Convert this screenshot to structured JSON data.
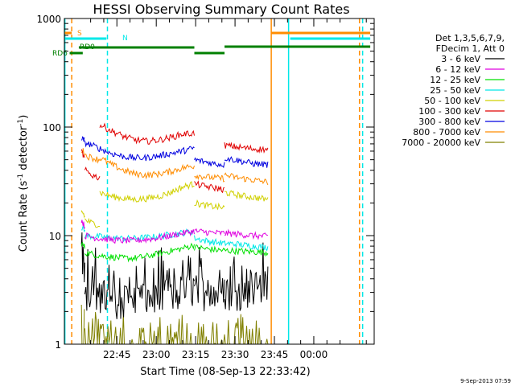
{
  "chart_data": {
    "type": "line",
    "title": "HESSI Observing Summary Count Rates",
    "xlabel": "Start Time (08-Sep-13 22:33:42)",
    "ylabel_main": "Count Rate (s",
    "ylabel_sup1": "-1",
    "ylabel_mid": " detector",
    "ylabel_sup2": "-1",
    "ylabel_end": ")",
    "y_scale": "log",
    "ylim": [
      1,
      1000
    ],
    "y_ticks": [
      {
        "value": 1,
        "label": "1"
      },
      {
        "value": 10,
        "label": "10"
      },
      {
        "value": 100,
        "label": "100"
      },
      {
        "value": 1000,
        "label": "1000"
      }
    ],
    "xlim_minutes": [
      -20,
      98
    ],
    "x_ticks": [
      {
        "t": 0,
        "label": "22:45"
      },
      {
        "t": 15,
        "label": "23:00"
      },
      {
        "t": 30,
        "label": "23:15"
      },
      {
        "t": 45,
        "label": "23:30"
      },
      {
        "t": 60,
        "label": "23:45"
      },
      {
        "t": 75,
        "label": "00:00"
      }
    ],
    "legend": {
      "position": "right",
      "header_line1": "Det 1,3,5,6,7,9,",
      "header_line2": "FDecim 1, Att 0"
    },
    "series": [
      {
        "name": "3 - 6 keV",
        "color": "#000000",
        "segments": [
          {
            "start": -13.5,
            "end": -12.2,
            "values": [
              6,
              5
            ]
          },
          {
            "start": -12.2,
            "end": 29.5,
            "values": [
              3,
              2.8,
              2.6,
              2.5,
              2.5,
              2.6,
              2.7,
              2.8,
              3.0,
              3.2
            ]
          },
          {
            "start": 29.5,
            "end": 41,
            "values": [
              3,
              3,
              2.9,
              2.9
            ]
          },
          {
            "start": 41,
            "end": 57.5,
            "values": [
              3,
              3,
              3.1,
              3.2
            ]
          }
        ]
      },
      {
        "name": "6 - 12 keV",
        "color": "#e000e0",
        "segments": [
          {
            "start": -13.5,
            "end": -12.2,
            "values": [
              14,
              12
            ]
          },
          {
            "start": -12.2,
            "end": 29.5,
            "values": [
              10,
              9.5,
              9.2,
              9.0,
              9.0,
              9.2,
              9.5,
              10,
              10.5,
              11
            ]
          },
          {
            "start": 29.5,
            "end": 41,
            "values": [
              11,
              10.8,
              10.6,
              10.5
            ]
          },
          {
            "start": 41,
            "end": 57.5,
            "values": [
              10.5,
              10.3,
              10,
              9.8
            ]
          }
        ]
      },
      {
        "name": "12 - 25 keV",
        "color": "#00e000",
        "segments": [
          {
            "start": -13.5,
            "end": -12.2,
            "values": [
              8.5,
              7.8
            ]
          },
          {
            "start": -12.2,
            "end": 29.5,
            "values": [
              7,
              6.6,
              6.4,
              6.2,
              6.2,
              6.4,
              6.8,
              7.2,
              7.6,
              8.2
            ]
          },
          {
            "start": 29.5,
            "end": 41,
            "values": [
              7.8,
              7.6,
              7.4,
              7.3
            ]
          },
          {
            "start": 41,
            "end": 57.5,
            "values": [
              7.3,
              7.2,
              7.1,
              7.0
            ]
          }
        ]
      },
      {
        "name": "25 - 50 keV",
        "color": "#00e8e8",
        "segments": [
          {
            "start": -13.5,
            "end": -12.2,
            "values": [
              12,
              11
            ]
          },
          {
            "start": -12.2,
            "end": 29.5,
            "values": [
              10,
              9.8,
              9.6,
              9.4,
              9.4,
              9.6,
              9.8,
              10.2,
              10.6,
              11
            ]
          },
          {
            "start": 29.5,
            "end": 41,
            "values": [
              9.5,
              9,
              8.7,
              8.5
            ]
          },
          {
            "start": 41,
            "end": 57.5,
            "values": [
              8.5,
              8.3,
              8.0,
              7.8
            ]
          }
        ]
      },
      {
        "name": "50 - 100 keV",
        "color": "#d0d000",
        "segments": [
          {
            "start": -13.5,
            "end": -12.2,
            "values": [
              17,
              15
            ]
          },
          {
            "start": -12.2,
            "end": -6.5,
            "values": [
              14,
              13,
              12.5
            ]
          },
          {
            "start": -6.5,
            "end": 29.5,
            "values": [
              25,
              23,
              22,
              21.5,
              22,
              23,
              25,
              28,
              30
            ]
          },
          {
            "start": 29.5,
            "end": 41,
            "values": [
              20,
              19,
              18.5,
              18
            ]
          },
          {
            "start": 41,
            "end": 57.5,
            "values": [
              25,
              23.5,
              22.5,
              21.5
            ]
          }
        ]
      },
      {
        "name": "100 - 300 keV",
        "color": "#e00000",
        "segments": [
          {
            "start": -13.5,
            "end": -12.2,
            "values": [
              60,
              50
            ]
          },
          {
            "start": -12.2,
            "end": -6.5,
            "values": [
              40,
              36,
              34
            ]
          },
          {
            "start": -6.5,
            "end": 29.5,
            "values": [
              105,
              92,
              82,
              76,
              74,
              76,
              80,
              86,
              88
            ]
          },
          {
            "start": 29.5,
            "end": 41,
            "values": [
              30,
              28.5,
              27.5,
              26.5
            ]
          },
          {
            "start": 41,
            "end": 57.5,
            "values": [
              68,
              65,
              63,
              62
            ]
          }
        ]
      },
      {
        "name": "300 - 800 keV",
        "color": "#0000e0",
        "segments": [
          {
            "start": -13.5,
            "end": -12.2,
            "values": [
              78,
              75
            ]
          },
          {
            "start": -12.2,
            "end": 29.5,
            "values": [
              72,
              65,
              58,
              54,
              52,
              52,
              54,
              57,
              60,
              64
            ]
          },
          {
            "start": 29.5,
            "end": 41,
            "values": [
              50,
              48,
              46,
              45
            ]
          },
          {
            "start": 41,
            "end": 57.5,
            "values": [
              52,
              49,
              46,
              45
            ]
          }
        ]
      },
      {
        "name": "800 - 7000 keV",
        "color": "#ff8c00",
        "segments": [
          {
            "start": -13.5,
            "end": -12.2,
            "values": [
              62,
              58
            ]
          },
          {
            "start": -12.2,
            "end": -6.5,
            "values": [
              55,
              52,
              50
            ]
          },
          {
            "start": -6.5,
            "end": 29.5,
            "values": [
              52,
              45,
              40,
              37,
              36,
              37,
              39,
              42,
              44
            ]
          },
          {
            "start": 29.5,
            "end": 41,
            "values": [
              36,
              35,
              34,
              33.5
            ]
          },
          {
            "start": 41,
            "end": 57.5,
            "values": [
              36,
              34,
              32.5,
              31
            ]
          }
        ]
      },
      {
        "name": "7000 - 20000 keV",
        "color": "#808000",
        "segments": [
          {
            "start": -13.5,
            "end": -12.2,
            "values": [
              2,
              1.6
            ]
          },
          {
            "start": -12.2,
            "end": 57.5,
            "values": [
              1.3,
              1.25,
              1.2,
              1.2,
              1.2,
              1.2,
              1.2,
              1.2
            ]
          }
        ]
      }
    ],
    "state_flags": [
      {
        "name": "S",
        "color": "#ff8c00",
        "segments": [
          [
            -19.8,
            -17.2
          ],
          [
            58.8,
            96.5
          ]
        ]
      },
      {
        "name": "N",
        "color": "#00e8e8",
        "segments": [
          [
            -20,
            -4
          ],
          [
            66,
            96.5
          ]
        ]
      },
      {
        "name": "RD0",
        "color": "#008000",
        "segments": [
          [
            -14.5,
            29.5
          ],
          [
            41,
            96.5
          ]
        ]
      },
      {
        "name": "RD6",
        "color": "#008000",
        "segments": [
          [
            -18,
            -13
          ],
          [
            29.5,
            41
          ]
        ]
      }
    ],
    "vertical_markers": [
      {
        "t": -19.8,
        "color": "#00e8e8",
        "style": "solid"
      },
      {
        "t": -17.2,
        "color": "#ff8c00",
        "style": "dashed"
      },
      {
        "t": -3.6,
        "color": "#00e8e8",
        "style": "dashed"
      },
      {
        "t": 58.8,
        "color": "#ff8c00",
        "style": "solid"
      },
      {
        "t": 65.4,
        "color": "#00e8e8",
        "style": "solid"
      },
      {
        "t": 92.4,
        "color": "#ff8c00",
        "style": "dashed"
      },
      {
        "t": 93.6,
        "color": "#00e8e8",
        "style": "dashed"
      }
    ]
  },
  "footer": {
    "timestamp": "9-Sep-2013 07:59"
  }
}
